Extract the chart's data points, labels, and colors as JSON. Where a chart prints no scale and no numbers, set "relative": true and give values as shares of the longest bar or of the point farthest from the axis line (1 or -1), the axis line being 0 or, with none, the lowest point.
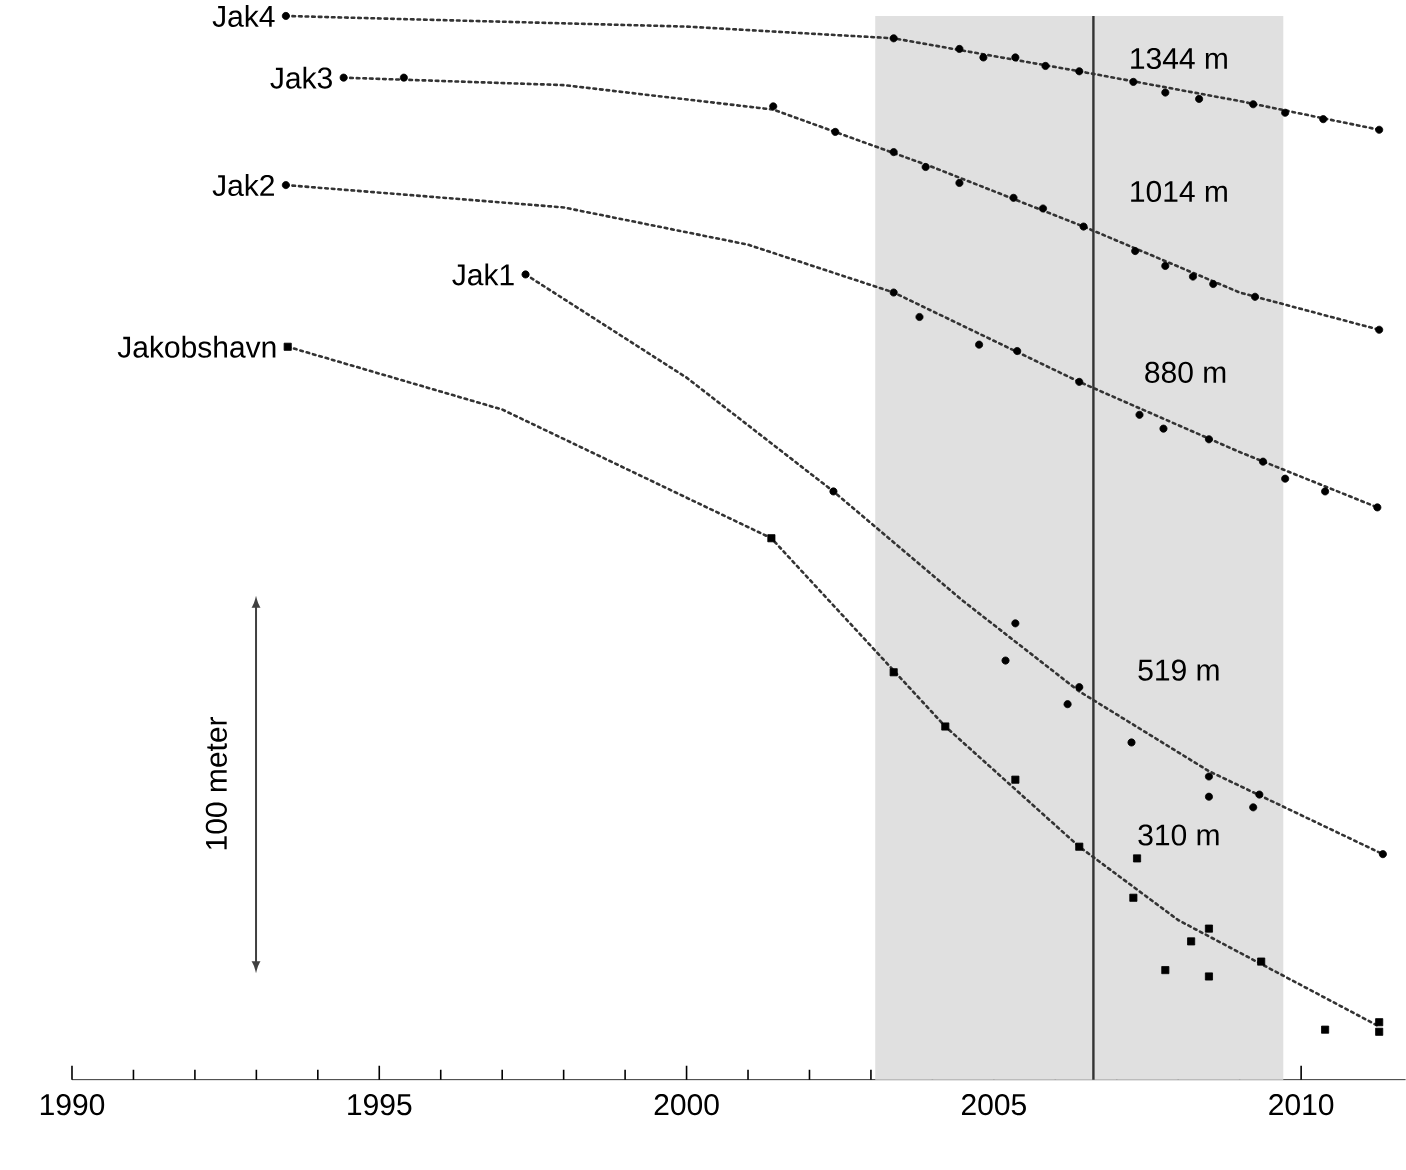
{
  "chart_data": {
    "type": "scatter",
    "relative": true,
    "xlim": [
      1990,
      2011.7
    ],
    "xticks": [
      1990,
      1995,
      2000,
      2005,
      2010
    ],
    "series": [
      {
        "name": "Jak4",
        "color": "#000000",
        "marker": "circle",
        "x": [
          1993.48,
          2003.37,
          2004.44,
          2004.83,
          2005.35,
          2005.84,
          2006.39,
          2007.27,
          2007.79,
          2008.34,
          2009.22,
          2009.74,
          2010.36,
          2011.27
        ],
        "values": [
          1.0,
          0.979,
          0.969,
          0.961,
          0.961,
          0.953,
          0.948,
          0.938,
          0.928,
          0.922,
          0.917,
          0.909,
          0.903,
          0.893
        ]
      },
      {
        "name": "Jak3",
        "color": "#000000",
        "marker": "circle",
        "x": [
          1994.42,
          1995.4,
          2001.41,
          2002.42,
          2003.37,
          2003.89,
          2004.44,
          2005.32,
          2005.8,
          2006.46,
          2007.3,
          2007.79,
          2008.24,
          2008.57,
          2009.25,
          2011.27
        ],
        "values": [
          0.942,
          0.942,
          0.915,
          0.891,
          0.872,
          0.858,
          0.843,
          0.829,
          0.819,
          0.802,
          0.779,
          0.765,
          0.755,
          0.748,
          0.736,
          0.705
        ]
      },
      {
        "name": "Jak2",
        "color": "#000000",
        "marker": "circle",
        "x": [
          1993.48,
          2003.37,
          2003.79,
          2004.76,
          2005.38,
          2006.39,
          2007.37,
          2007.76,
          2008.5,
          2009.38,
          2009.74,
          2010.39,
          2011.24
        ],
        "values": [
          0.841,
          0.74,
          0.717,
          0.691,
          0.685,
          0.656,
          0.625,
          0.612,
          0.602,
          0.581,
          0.565,
          0.553,
          0.538
        ]
      },
      {
        "name": "Jak1",
        "color": "#000000",
        "marker": "circle",
        "x": [
          1997.38,
          2002.39,
          2005.35,
          2005.19,
          2006.2,
          2006.39,
          2007.24,
          2008.5,
          2008.5,
          2009.32,
          2009.22,
          2011.33
        ],
        "values": [
          0.757,
          0.553,
          0.429,
          0.394,
          0.353,
          0.369,
          0.317,
          0.285,
          0.266,
          0.268,
          0.256,
          0.212
        ]
      },
      {
        "name": "Jakobshavn",
        "color": "#000000",
        "marker": "square",
        "x": [
          1993.51,
          2001.38,
          2003.37,
          2004.21,
          2005.35,
          2006.39,
          2007.33,
          2007.27,
          2007.79,
          2008.21,
          2008.5,
          2008.5,
          2009.35,
          2010.39,
          2011.27,
          2011.27
        ],
        "values": [
          0.689,
          0.509,
          0.383,
          0.332,
          0.282,
          0.219,
          0.208,
          0.171,
          0.103,
          0.13,
          0.142,
          0.097,
          0.111,
          0.047,
          0.054,
          0.045
        ]
      },
      {
        "type": "line",
        "color": "#333333",
        "marker": "none",
        "line_style": "dotted",
        "x": [
          1993.48,
          2000,
          2003.37,
          2006.39,
          2009,
          2011.27
        ],
        "values": [
          1.0,
          0.99,
          0.979,
          0.948,
          0.92,
          0.893
        ]
      },
      {
        "type": "line",
        "color": "#333333",
        "marker": "none",
        "line_style": "dotted",
        "x": [
          1994.42,
          1998,
          2001.41,
          2004,
          2006.46,
          2009,
          2011.27
        ],
        "values": [
          0.942,
          0.935,
          0.912,
          0.858,
          0.802,
          0.74,
          0.705
        ]
      },
      {
        "type": "line",
        "color": "#333333",
        "marker": "none",
        "line_style": "dotted",
        "x": [
          1993.48,
          1998,
          2001,
          2003.37,
          2006.39,
          2009,
          2011.24
        ],
        "values": [
          0.841,
          0.82,
          0.785,
          0.74,
          0.656,
          0.59,
          0.538
        ]
      },
      {
        "type": "line",
        "color": "#333333",
        "marker": "none",
        "line_style": "dotted",
        "x": [
          1997.38,
          2000,
          2002.39,
          2004.5,
          2006.39,
          2008.5,
          2011.33
        ],
        "values": [
          0.757,
          0.66,
          0.553,
          0.45,
          0.365,
          0.29,
          0.212
        ]
      },
      {
        "type": "line",
        "color": "#333333",
        "marker": "none",
        "line_style": "dotted",
        "x": [
          1993.51,
          1997,
          2001.38,
          2004.21,
          2006.39,
          2008,
          2011.27
        ],
        "values": [
          0.689,
          0.63,
          0.509,
          0.332,
          0.219,
          0.15,
          0.05
        ]
      }
    ],
    "bands": [
      {
        "axis": "x",
        "from": 2003.07,
        "to": 2009.71,
        "color": "#e0e0e0"
      }
    ],
    "ref_lines": [
      {
        "axis": "x",
        "value": 2006.62,
        "color": "#333333"
      }
    ],
    "annotations": [
      "1344 m",
      "1014 m",
      "880 m",
      "519 m",
      "310 m",
      "100 meter"
    ]
  }
}
